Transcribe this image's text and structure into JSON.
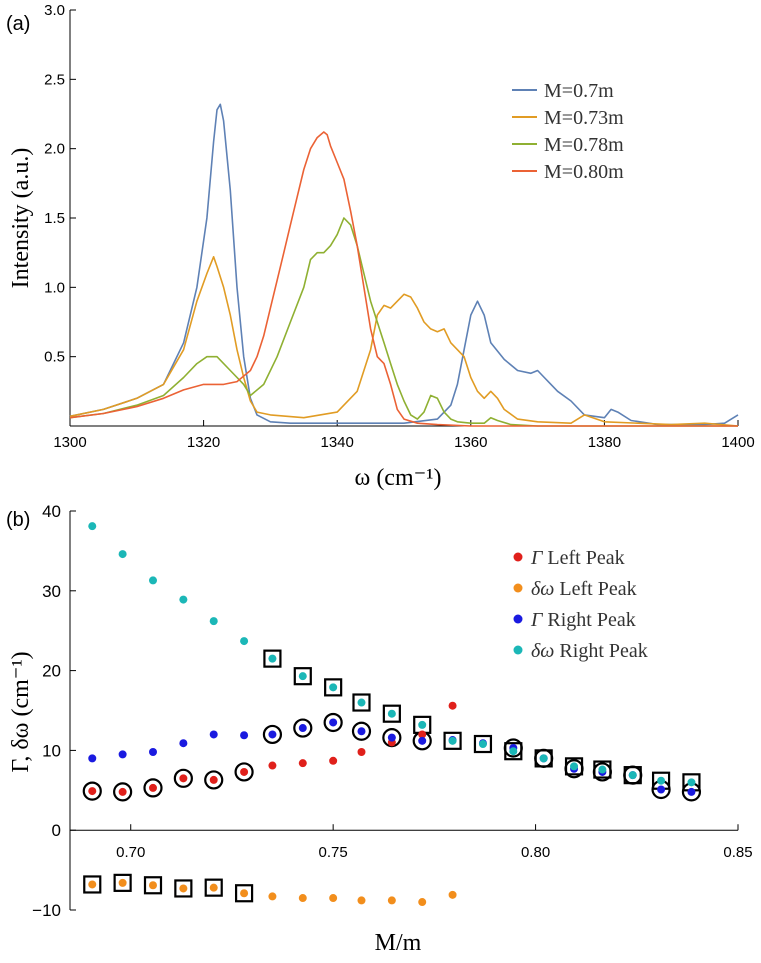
{
  "chart_data": [
    {
      "type": "line",
      "panel_label": "(a)",
      "xlabel": "ω (cm⁻¹)",
      "ylabel": "Intensity (a.u.)",
      "xlim": [
        1300,
        1400
      ],
      "ylim": [
        0,
        3.0
      ],
      "xticks": [
        "1300",
        "1320",
        "1340",
        "1360",
        "1380",
        "1400"
      ],
      "yticks": [
        "0.5",
        "1.0",
        "1.5",
        "2.0",
        "2.5",
        "3.0"
      ],
      "legend_position": "top-right",
      "series": [
        {
          "name": "M=0.7m",
          "color": "#5e81b5",
          "x": [
            1300,
            1305,
            1310,
            1314,
            1317,
            1319,
            1320.5,
            1321.5,
            1322,
            1322.5,
            1323,
            1324,
            1325,
            1326,
            1327,
            1328,
            1330,
            1333,
            1340,
            1350,
            1355,
            1357,
            1358,
            1359,
            1360,
            1361,
            1362,
            1363,
            1365,
            1367,
            1369,
            1370,
            1371,
            1373,
            1375,
            1377,
            1380,
            1381,
            1382,
            1384,
            1388,
            1395,
            1398,
            1400
          ],
          "y": [
            0.07,
            0.12,
            0.2,
            0.3,
            0.6,
            1.0,
            1.5,
            2.05,
            2.28,
            2.32,
            2.2,
            1.7,
            1.0,
            0.5,
            0.2,
            0.08,
            0.03,
            0.02,
            0.02,
            0.02,
            0.05,
            0.15,
            0.3,
            0.55,
            0.8,
            0.9,
            0.8,
            0.6,
            0.48,
            0.4,
            0.38,
            0.4,
            0.35,
            0.25,
            0.18,
            0.08,
            0.06,
            0.12,
            0.1,
            0.04,
            0.01,
            0.01,
            0.02,
            0.08
          ]
        },
        {
          "name": "M=0.73m",
          "color": "#e19c24",
          "x": [
            1300,
            1305,
            1310,
            1314,
            1317,
            1319,
            1320.5,
            1321.5,
            1322,
            1323,
            1324,
            1325,
            1326,
            1327,
            1328,
            1330,
            1335,
            1340,
            1343,
            1345,
            1346,
            1347,
            1348,
            1349,
            1350,
            1351,
            1352,
            1353,
            1354,
            1355,
            1356,
            1357,
            1358,
            1359,
            1360,
            1361,
            1362,
            1363,
            1364,
            1365,
            1367,
            1370,
            1375,
            1377,
            1380,
            1390,
            1395,
            1400
          ],
          "y": [
            0.07,
            0.12,
            0.2,
            0.3,
            0.55,
            0.9,
            1.1,
            1.22,
            1.15,
            1.0,
            0.8,
            0.55,
            0.35,
            0.18,
            0.1,
            0.08,
            0.06,
            0.1,
            0.25,
            0.55,
            0.8,
            0.87,
            0.85,
            0.9,
            0.95,
            0.93,
            0.85,
            0.75,
            0.7,
            0.68,
            0.7,
            0.6,
            0.55,
            0.5,
            0.35,
            0.25,
            0.2,
            0.25,
            0.2,
            0.12,
            0.05,
            0.03,
            0.02,
            0.08,
            0.03,
            0.01,
            0.02,
            0.0
          ]
        },
        {
          "name": "M=0.78m",
          "color": "#8fb032",
          "x": [
            1300,
            1305,
            1310,
            1314,
            1317,
            1319,
            1320.5,
            1322,
            1324,
            1326,
            1327,
            1329,
            1331,
            1333,
            1335,
            1336,
            1337,
            1338,
            1339,
            1340,
            1341,
            1342,
            1343,
            1344,
            1345,
            1346,
            1347,
            1348,
            1349,
            1350,
            1351,
            1352,
            1353,
            1354,
            1355,
            1356,
            1357,
            1358,
            1360,
            1362,
            1363,
            1364,
            1366,
            1370,
            1380,
            1390,
            1400
          ],
          "y": [
            0.06,
            0.09,
            0.15,
            0.22,
            0.35,
            0.45,
            0.5,
            0.5,
            0.4,
            0.3,
            0.22,
            0.3,
            0.5,
            0.75,
            1.0,
            1.2,
            1.25,
            1.25,
            1.3,
            1.38,
            1.5,
            1.45,
            1.3,
            1.1,
            0.9,
            0.75,
            0.6,
            0.45,
            0.3,
            0.18,
            0.08,
            0.05,
            0.1,
            0.22,
            0.2,
            0.1,
            0.05,
            0.03,
            0.02,
            0.02,
            0.06,
            0.04,
            0.01,
            0.0,
            0.0,
            0.0,
            0.0
          ]
        },
        {
          "name": "M=0.80m",
          "color": "#eb6235",
          "x": [
            1300,
            1305,
            1310,
            1314,
            1317,
            1320,
            1323,
            1325,
            1327,
            1328,
            1329,
            1330,
            1331,
            1332,
            1333,
            1334,
            1335,
            1336,
            1337,
            1338,
            1338.5,
            1339,
            1340,
            1341,
            1342,
            1343,
            1344,
            1345,
            1346,
            1347,
            1348,
            1349,
            1350,
            1352,
            1355,
            1360,
            1370,
            1380,
            1390,
            1400
          ],
          "y": [
            0.06,
            0.09,
            0.14,
            0.2,
            0.26,
            0.3,
            0.3,
            0.32,
            0.4,
            0.5,
            0.65,
            0.85,
            1.05,
            1.25,
            1.45,
            1.65,
            1.85,
            2.0,
            2.08,
            2.12,
            2.1,
            2.02,
            1.9,
            1.78,
            1.55,
            1.3,
            1.0,
            0.7,
            0.5,
            0.45,
            0.3,
            0.12,
            0.05,
            0.02,
            0.01,
            0.0,
            0.0,
            0.0,
            0.0,
            0.0
          ]
        }
      ]
    },
    {
      "type": "scatter",
      "panel_label": "(b)",
      "xlabel": "M/m",
      "ylabel": "Γ, δω (cm⁻¹)",
      "xlim": [
        0.685,
        0.85
      ],
      "ylim": [
        -10,
        40
      ],
      "xticks": [
        "0.70",
        "0.75",
        "0.80",
        "0.85"
      ],
      "yticks": [
        "−10",
        "0",
        "10",
        "20",
        "30",
        "40"
      ],
      "legend_position": "top-right",
      "series": [
        {
          "name": "Γ Left Peak",
          "name_symbol": "Γ",
          "name_rest": " Left Peak",
          "color": "#e0201b",
          "x": [
            0.6905,
            0.698,
            0.7055,
            0.713,
            0.7205,
            0.728,
            0.735,
            0.7425,
            0.75,
            0.757,
            0.7645,
            0.772,
            0.7795
          ],
          "y": [
            4.9,
            4.8,
            5.3,
            6.5,
            6.3,
            7.3,
            8.1,
            8.4,
            8.7,
            9.8,
            11.0,
            12.0,
            15.6
          ]
        },
        {
          "name": "δω Left Peak",
          "name_symbol": "δω",
          "name_rest": " Left Peak",
          "color": "#f28e1c",
          "x": [
            0.6905,
            0.698,
            0.7055,
            0.713,
            0.7205,
            0.728,
            0.735,
            0.7425,
            0.75,
            0.757,
            0.7645,
            0.772,
            0.7795
          ],
          "y": [
            -6.8,
            -6.6,
            -6.9,
            -7.3,
            -7.2,
            -7.9,
            -8.3,
            -8.5,
            -8.5,
            -8.8,
            -8.8,
            -9.0,
            -8.1
          ]
        },
        {
          "name": "Γ Right Peak",
          "name_symbol": "Γ",
          "name_rest": " Right Peak",
          "color": "#1a1ae0",
          "x": [
            0.6905,
            0.698,
            0.7055,
            0.713,
            0.7205,
            0.728,
            0.735,
            0.7425,
            0.75,
            0.757,
            0.7645,
            0.772,
            0.7795,
            0.787,
            0.7945,
            0.802,
            0.8095,
            0.8165,
            0.824,
            0.831,
            0.8385
          ],
          "y": [
            9.0,
            9.5,
            9.8,
            10.9,
            12.0,
            11.9,
            12.0,
            12.8,
            13.5,
            12.4,
            11.6,
            11.2,
            11.3,
            10.9,
            10.3,
            9.0,
            7.7,
            7.3,
            6.9,
            5.1,
            4.8
          ]
        },
        {
          "name": "δω Right Peak",
          "name_symbol": "δω",
          "name_rest": " Right Peak",
          "color": "#1bb7b7",
          "x": [
            0.6905,
            0.698,
            0.7055,
            0.713,
            0.7205,
            0.728,
            0.735,
            0.7425,
            0.75,
            0.757,
            0.7645,
            0.772,
            0.7795,
            0.787,
            0.7945,
            0.802,
            0.8095,
            0.8165,
            0.824,
            0.831,
            0.8385
          ],
          "y": [
            38.1,
            34.6,
            31.3,
            28.9,
            26.2,
            23.7,
            21.5,
            19.3,
            17.9,
            16.0,
            14.6,
            13.2,
            11.2,
            10.8,
            9.9,
            9.0,
            8.0,
            7.6,
            6.9,
            6.2,
            6.0
          ]
        }
      ],
      "markers": {
        "circles": [
          {
            "x": 0.6905,
            "y": 4.9
          },
          {
            "x": 0.698,
            "y": 4.8
          },
          {
            "x": 0.7055,
            "y": 5.3
          },
          {
            "x": 0.713,
            "y": 6.5
          },
          {
            "x": 0.7205,
            "y": 6.3
          },
          {
            "x": 0.728,
            "y": 7.3
          },
          {
            "x": 0.735,
            "y": 12.0
          },
          {
            "x": 0.7425,
            "y": 12.8
          },
          {
            "x": 0.75,
            "y": 13.5
          },
          {
            "x": 0.757,
            "y": 12.4
          },
          {
            "x": 0.7645,
            "y": 11.6
          },
          {
            "x": 0.772,
            "y": 11.2
          },
          {
            "x": 0.7945,
            "y": 10.3
          },
          {
            "x": 0.802,
            "y": 9.0
          },
          {
            "x": 0.8095,
            "y": 7.7
          },
          {
            "x": 0.8165,
            "y": 7.3
          },
          {
            "x": 0.824,
            "y": 6.9
          },
          {
            "x": 0.831,
            "y": 5.1
          },
          {
            "x": 0.8385,
            "y": 4.8
          }
        ],
        "squares": [
          {
            "x": 0.6905,
            "y": -6.8
          },
          {
            "x": 0.698,
            "y": -6.6
          },
          {
            "x": 0.7055,
            "y": -6.9
          },
          {
            "x": 0.713,
            "y": -7.3
          },
          {
            "x": 0.7205,
            "y": -7.2
          },
          {
            "x": 0.728,
            "y": -7.9
          },
          {
            "x": 0.735,
            "y": 21.5
          },
          {
            "x": 0.7425,
            "y": 19.3
          },
          {
            "x": 0.75,
            "y": 17.9
          },
          {
            "x": 0.757,
            "y": 16.0
          },
          {
            "x": 0.7645,
            "y": 14.6
          },
          {
            "x": 0.772,
            "y": 13.2
          },
          {
            "x": 0.7795,
            "y": 11.2
          },
          {
            "x": 0.787,
            "y": 10.8
          },
          {
            "x": 0.7945,
            "y": 9.9
          },
          {
            "x": 0.802,
            "y": 9.0
          },
          {
            "x": 0.8095,
            "y": 8.0
          },
          {
            "x": 0.8165,
            "y": 7.6
          },
          {
            "x": 0.824,
            "y": 6.9
          },
          {
            "x": 0.831,
            "y": 6.2
          },
          {
            "x": 0.8385,
            "y": 6.0
          }
        ]
      }
    }
  ]
}
